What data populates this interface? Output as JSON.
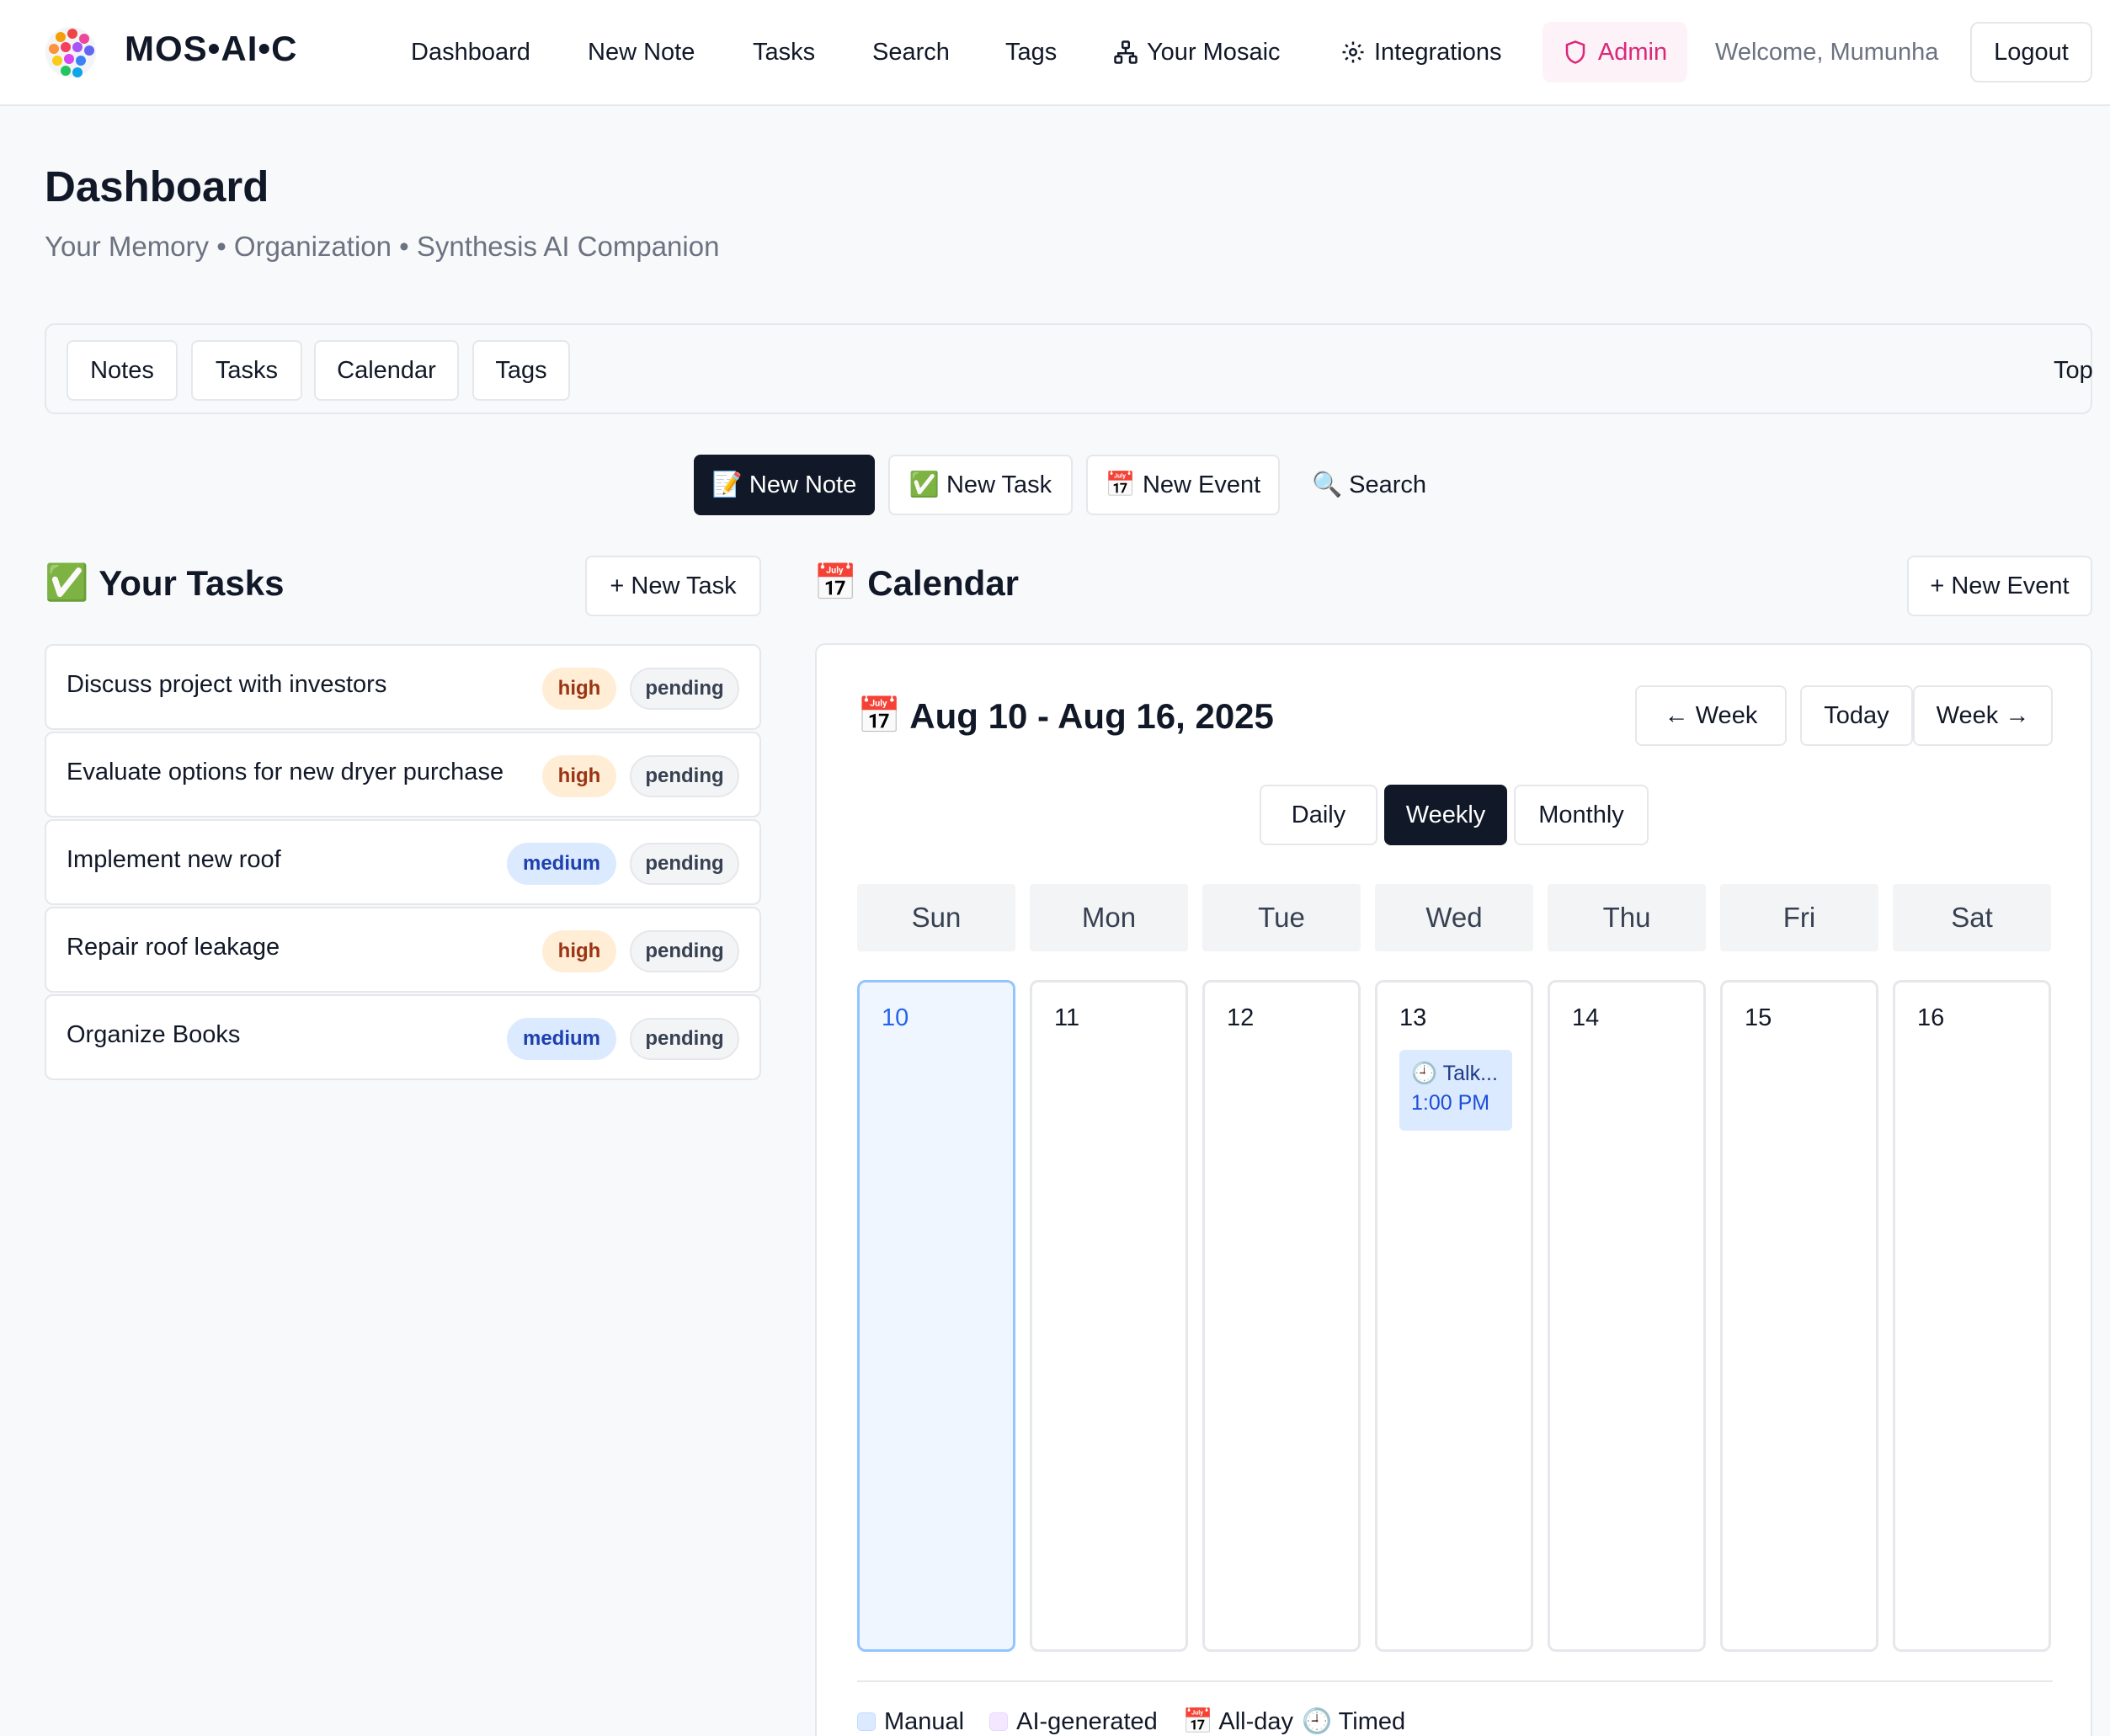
{
  "brand": {
    "name": "MOS•AI•C"
  },
  "nav": {
    "dashboard": "Dashboard",
    "new_note": "New Note",
    "tasks": "Tasks",
    "search": "Search",
    "tags": "Tags",
    "your_mosaic": "Your Mosaic",
    "integrations": "Integrations",
    "admin": "Admin",
    "welcome": "Welcome, Mumunha",
    "logout": "Logout"
  },
  "header": {
    "title": "Dashboard",
    "subtitle": "Your Memory • Organization • Synthesis AI Companion"
  },
  "section_tabs": {
    "notes": "Notes",
    "tasks": "Tasks",
    "calendar": "Calendar",
    "tags": "Tags",
    "top": "Top"
  },
  "quick_actions": {
    "new_note": "📝 New Note",
    "new_task": "✅ New Task",
    "new_event": "📅 New Event",
    "search": "🔍 Search"
  },
  "tasks_panel": {
    "heading": "Your Tasks",
    "heading_icon": "✅",
    "new_button": "+ New Task",
    "items": [
      {
        "title": "Discuss project with investors",
        "priority": "high",
        "status": "pending"
      },
      {
        "title": "Evaluate options for new dryer purchase",
        "priority": "high",
        "status": "pending"
      },
      {
        "title": "Implement new roof",
        "priority": "medium",
        "status": "pending"
      },
      {
        "title": "Repair roof leakage",
        "priority": "high",
        "status": "pending"
      },
      {
        "title": "Organize Books",
        "priority": "medium",
        "status": "pending"
      }
    ]
  },
  "calendar": {
    "heading": "Calendar",
    "heading_icon": "📅",
    "new_button": "+ New Event",
    "range_icon": "📅",
    "range": "Aug 10 - Aug 16, 2025",
    "prev_week": "← Week",
    "today": "Today",
    "next_week": "Week →",
    "views": {
      "daily": "Daily",
      "weekly": "Weekly",
      "monthly": "Monthly",
      "active": "Weekly"
    },
    "day_headers": [
      "Sun",
      "Mon",
      "Tue",
      "Wed",
      "Thu",
      "Fri",
      "Sat"
    ],
    "days": [
      "10",
      "11",
      "12",
      "13",
      "14",
      "15",
      "16"
    ],
    "today_day": "10",
    "event": {
      "title": "🕘 Talk...",
      "time": "1:00 PM",
      "day": "13"
    },
    "legend": {
      "manual": "Manual",
      "ai_generated": "AI-generated",
      "all_day": "📅 All-day",
      "timed": "🕘 Timed"
    }
  },
  "colors": {
    "primary_dark": "#111827",
    "admin_pink": "#db2777",
    "high_badge_bg": "#ffedd5",
    "medium_badge_bg": "#dbeafe",
    "today_bg": "#eff6ff",
    "manual_swatch": "#dbeafe",
    "ai_swatch": "#f3e8ff"
  }
}
